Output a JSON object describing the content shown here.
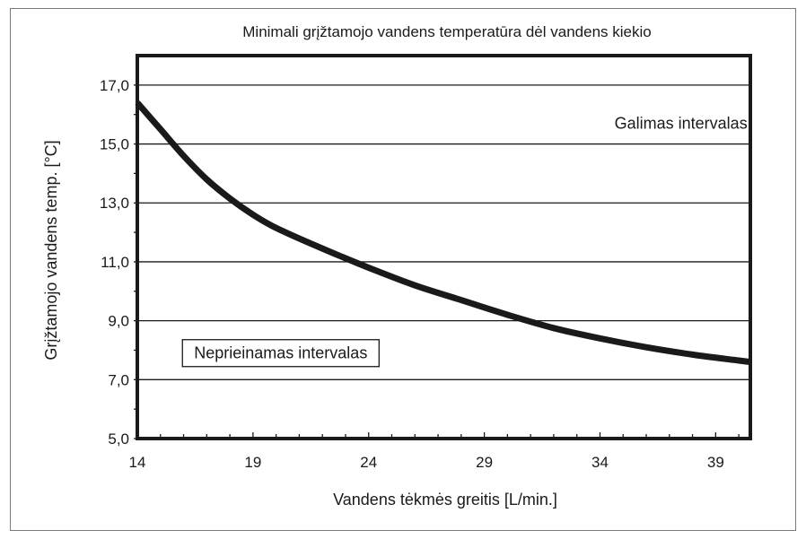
{
  "chart_data": {
    "type": "line",
    "title": "Minimali grįžtamojo vandens temperatūra dėl vandens kiekio",
    "xlabel": "Vandens tėkmės greitis [L/min.]",
    "ylabel": "Grįžtamojo vandens temp. [°C]",
    "xlim": [
      14,
      40.5
    ],
    "ylim": [
      5.0,
      18.0
    ],
    "x_ticks": [
      14,
      19,
      24,
      29,
      34,
      39
    ],
    "x_tick_labels": [
      "14",
      "19",
      "24",
      "29",
      "34",
      "39"
    ],
    "y_ticks": [
      5.0,
      7.0,
      9.0,
      11.0,
      13.0,
      15.0,
      17.0
    ],
    "y_tick_labels": [
      "5,0",
      "7,0",
      "9,0",
      "11,0",
      "13,0",
      "15,0",
      "17,0"
    ],
    "grid": "horizontal",
    "series": [
      {
        "x": [
          14,
          15,
          16,
          17,
          18,
          19,
          20,
          22,
          24,
          26,
          28,
          30,
          32,
          34,
          36,
          38,
          40,
          40.5
        ],
        "y": [
          16.4,
          15.5,
          14.6,
          13.8,
          13.15,
          12.6,
          12.15,
          11.45,
          10.8,
          10.2,
          9.7,
          9.2,
          8.75,
          8.4,
          8.1,
          7.85,
          7.65,
          7.6
        ],
        "color": "#1a1a1a"
      }
    ],
    "annotations": [
      {
        "text": "Galimas intervalas",
        "x": 37.5,
        "y": 15.7
      },
      {
        "text": "Neprieinamas intervalas",
        "x": 20.2,
        "y": 7.9,
        "boxed": true
      }
    ]
  }
}
